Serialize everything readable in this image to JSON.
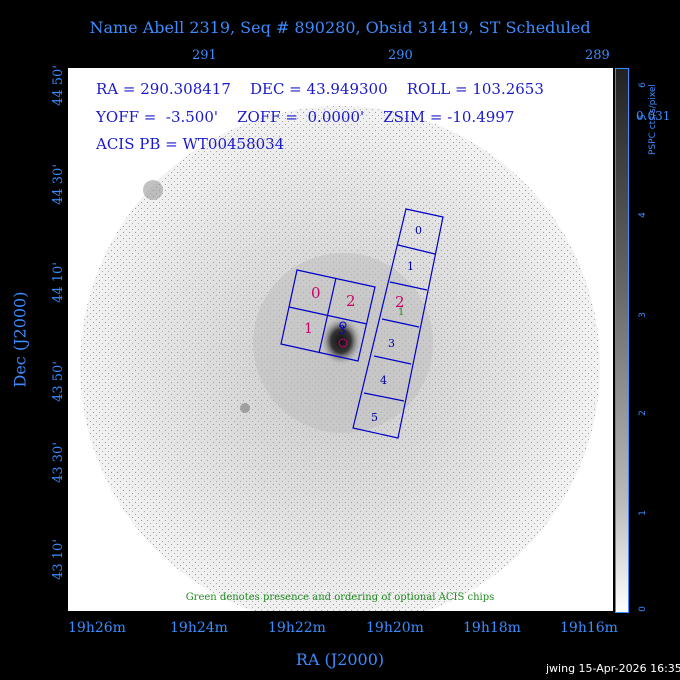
{
  "title": "Name Abell 2319, Seq # 890280, Obsid 31419, ST Scheduled",
  "top_ticks": [
    "291",
    "290",
    "289"
  ],
  "bottom_ticks": [
    "19h26m",
    "19h24m",
    "19h22m",
    "19h20m",
    "19h18m",
    "19h16m"
  ],
  "dec_ticks": [
    "44 50'",
    "44 30'",
    "44 10'",
    "43 50'",
    "43 30'",
    "43 10'"
  ],
  "xlabel": "RA (J2000)",
  "ylabel": "Dec (J2000)",
  "info": {
    "line1": "RA = 290.308417    DEC = 43.949300    ROLL = 103.2653",
    "line2": "YOFF =  -3.500'    ZOFF =  0.0000'    ZSIM = -10.4997",
    "line3": "ACIS PB = WT00458034"
  },
  "chips": {
    "acis_i": [
      "0",
      "2",
      "1",
      "3"
    ],
    "acis_s": [
      "0",
      "1",
      "2",
      "3",
      "4",
      "5"
    ],
    "optional_label": "1"
  },
  "footer": "Green denotes presence and ordering of optional ACIS chips",
  "colorbar": {
    "label": "PSPC cts/s/pixel",
    "ticks": [
      "0",
      "1",
      "2",
      "3",
      "4",
      "5",
      "6"
    ],
    "partial_label": "0.031"
  },
  "stamp": "jwing 15-Apr-2026 16:35"
}
